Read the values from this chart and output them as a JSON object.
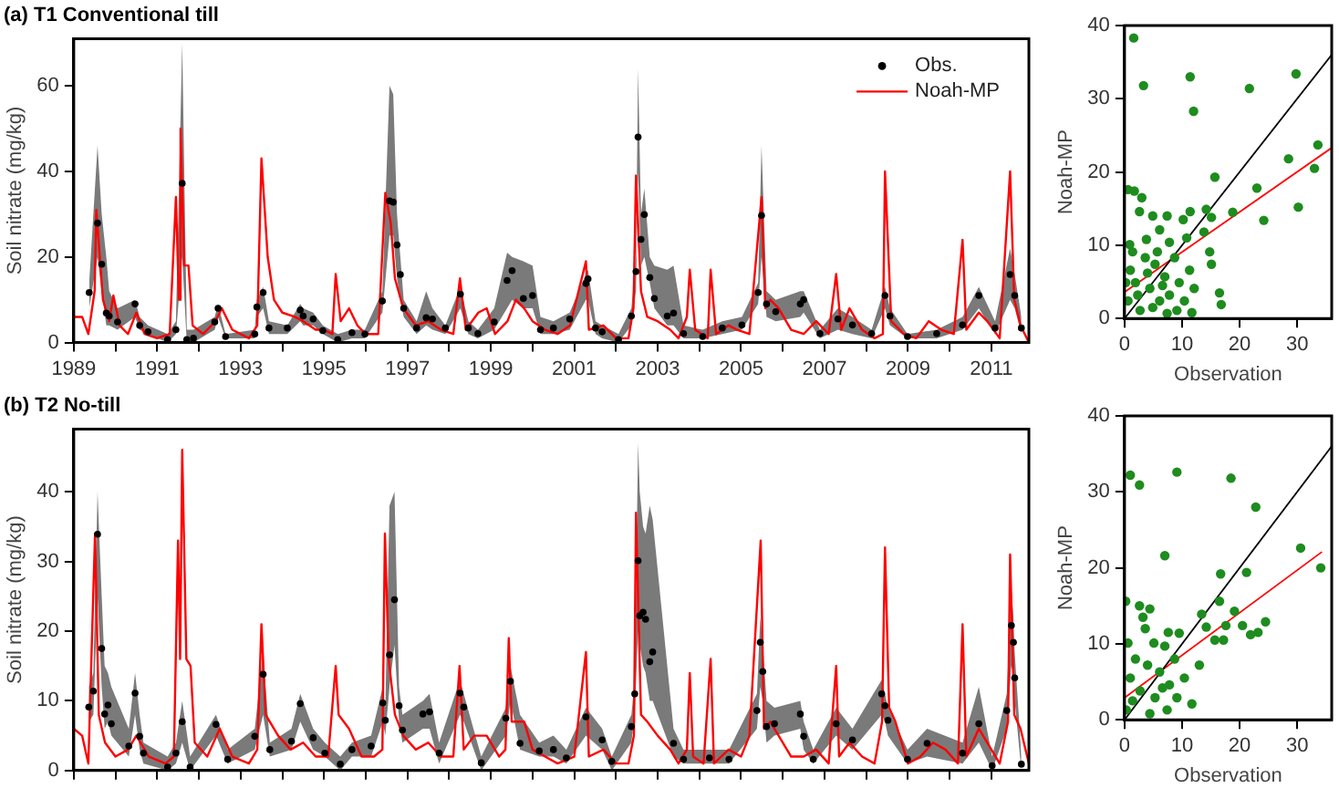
{
  "chart_data": [
    {
      "type": "line",
      "title": "(a) T1 Conventional till",
      "ylabel": "Soil nitrate (mg/kg)",
      "xlim": [
        1989,
        2011.9
      ],
      "ylim": [
        0,
        71
      ],
      "legend": "top right",
      "xticks": [
        1989,
        {
          "value": 1990,
          "label": null
        },
        1991,
        {
          "value": 1992,
          "label": null
        },
        1993,
        {
          "value": 1994,
          "label": null
        },
        1995,
        {
          "value": 1996,
          "label": null
        },
        1997,
        {
          "value": 1998,
          "label": null
        },
        1999,
        {
          "value": 2000,
          "label": null
        },
        2001,
        {
          "value": 2002,
          "label": null
        },
        2003,
        {
          "value": 2004,
          "label": null
        },
        2005,
        {
          "value": 2006,
          "label": null
        },
        2007,
        {
          "value": 2008,
          "label": null
        },
        2009,
        {
          "value": 2010,
          "label": null
        },
        2011
      ],
      "yticks": [
        0,
        20,
        40,
        60
      ],
      "series": [
        {
          "type": "scatter",
          "marker": "circle",
          "name": "Obs.",
          "color": "#000000",
          "x": [
            1989.37,
            1989.57,
            1989.67,
            1989.78,
            1989.85,
            1990.05,
            1990.47,
            1990.58,
            1990.78,
            1991.25,
            1991.45,
            1991.6,
            1991.71,
            1991.87,
            1992.38,
            1992.46,
            1992.64,
            1993.34,
            1993.39,
            1993.54,
            1993.68,
            1994.12,
            1994.43,
            1994.5,
            1994.74,
            1994.97,
            1995.33,
            1995.67,
            1995.98,
            1996.4,
            1996.57,
            1996.66,
            1996.75,
            1996.83,
            1996.91,
            1997.22,
            1997.45,
            1997.6,
            1997.91,
            1998.27,
            1998.46,
            1998.69,
            1999.08,
            1999.39,
            1999.51,
            1999.78,
            2000,
            2000.19,
            2000.5,
            2000.89,
            2001.28,
            2001.33,
            2001.51,
            2001.67,
            2002.06,
            2002.37,
            2002.48,
            2002.53,
            2002.6,
            2002.68,
            2002.81,
            2002.92,
            2003.23,
            2003.38,
            2003.62,
            2004.08,
            2004.55,
            2005.02,
            2005.41,
            2005.49,
            2005.61,
            2005.83,
            2006.42,
            2006.5,
            2006.89,
            2007.32,
            2007.67,
            2008.13,
            2008.45,
            2008.57,
            2008.99,
            2009.69,
            2010.31,
            2010.7,
            2011.09,
            2011.45,
            2011.56,
            2011.72
          ],
          "values": [
            11.7,
            27.9,
            18.3,
            6.9,
            6.2,
            4.8,
            9,
            4,
            2.5,
            0.7,
            3,
            37.2,
            0.7,
            1,
            4.8,
            8,
            1.4,
            2,
            8.3,
            11.7,
            3.4,
            3.4,
            7.6,
            6.2,
            5.5,
            2.8,
            0.7,
            2.3,
            2,
            9.7,
            33.1,
            32.8,
            22.8,
            15.9,
            8,
            3.4,
            5.8,
            5.5,
            3.4,
            11.3,
            3.4,
            2.1,
            4.8,
            14.5,
            16.8,
            10.3,
            11,
            3,
            3.4,
            5.5,
            13.8,
            14.9,
            3.4,
            2.5,
            0.7,
            6.2,
            16.6,
            48,
            24.1,
            29.9,
            15.2,
            10.3,
            6.2,
            6.9,
            2.1,
            1.4,
            3.4,
            4.1,
            11.7,
            29.7,
            9,
            7.2,
            9,
            10,
            2.1,
            5.5,
            4.1,
            2.1,
            11,
            6.2,
            1.4,
            2.1,
            4.1,
            11,
            3.4,
            15.9,
            11,
            3.4
          ],
          "lower": [
            8,
            20,
            12,
            4,
            4,
            3,
            6,
            3,
            2,
            0,
            2,
            20,
            0,
            0,
            3,
            6,
            1,
            1,
            6,
            8,
            2,
            2,
            5,
            4,
            4,
            2,
            0,
            1,
            1,
            7,
            25,
            25,
            15,
            10,
            6,
            2,
            4,
            3,
            2,
            8,
            2,
            1,
            3,
            8,
            10,
            8,
            8,
            2,
            2,
            3,
            10,
            10,
            2,
            1,
            0,
            4,
            12,
            40,
            18,
            20,
            14,
            8,
            4,
            4,
            1,
            1,
            2,
            3,
            9,
            20,
            6,
            5,
            6,
            7,
            1,
            3,
            2,
            1,
            8,
            4,
            1,
            1,
            3,
            8,
            2,
            10,
            8,
            2
          ],
          "upper": [
            14,
            46,
            30,
            20,
            12,
            8,
            10,
            6,
            4,
            2,
            5,
            70,
            3,
            3,
            6,
            9,
            2,
            3,
            10,
            13,
            5,
            4,
            9,
            8,
            7,
            4,
            2,
            3,
            3,
            12,
            60,
            58,
            30,
            20,
            10,
            5,
            12,
            8,
            4,
            13,
            5,
            3,
            8,
            21,
            20,
            19,
            18,
            6,
            5,
            7,
            16,
            17,
            5,
            4,
            2,
            8,
            20,
            64,
            30,
            36,
            20,
            18,
            17,
            18,
            4,
            3,
            5,
            6,
            14,
            46,
            12,
            10,
            12,
            12,
            3,
            8,
            6,
            3,
            13,
            8,
            2,
            3,
            6,
            13,
            5,
            22,
            16,
            6
          ]
        },
        {
          "name": "Noah-MP",
          "marker": "none",
          "color": "#ff0000",
          "x": [
            1989,
            1989.2,
            1989.35,
            1989.5,
            1989.54,
            1989.7,
            1989.85,
            1989.95,
            1990.1,
            1990.3,
            1990.5,
            1990.7,
            1991,
            1991.3,
            1991.45,
            1991.52,
            1991.56,
            1991.65,
            1991.75,
            1991.85,
            1992.1,
            1992.4,
            1992.55,
            1992.8,
            1993.2,
            1993.4,
            1993.5,
            1993.65,
            1993.8,
            1994,
            1994.3,
            1994.5,
            1994.8,
            1995,
            1995.2,
            1995.28,
            1995.4,
            1995.6,
            1995.8,
            1996,
            1996.3,
            1996.47,
            1996.6,
            1996.7,
            1996.9,
            1997.2,
            1997.5,
            1997.8,
            1998.1,
            1998.26,
            1998.4,
            1998.7,
            1998.9,
            1999.1,
            1999.4,
            1999.6,
            1999.8,
            2000,
            2000.3,
            2000.6,
            2000.9,
            2001.28,
            2001.35,
            2001.7,
            2002,
            2002.3,
            2002.42,
            2002.48,
            2002.6,
            2002.75,
            2003,
            2003.3,
            2003.5,
            2003.7,
            2003.77,
            2003.9,
            2004.2,
            2004.27,
            2004.4,
            2004.7,
            2004.9,
            2005.2,
            2005.49,
            2005.58,
            2005.7,
            2005.9,
            2006.2,
            2006.5,
            2006.8,
            2007.1,
            2007.28,
            2007.4,
            2007.6,
            2007.9,
            2008.2,
            2008.4,
            2008.45,
            2008.6,
            2008.9,
            2009.2,
            2009.5,
            2009.8,
            2010.1,
            2010.31,
            2010.4,
            2010.7,
            2010.9,
            2011.2,
            2011.45,
            2011.55,
            2011.7,
            2011.9
          ],
          "values": [
            6,
            6,
            2,
            12,
            31,
            10,
            5,
            11,
            4,
            2,
            7,
            2,
            1,
            2,
            34,
            10,
            50,
            18,
            18,
            4,
            2,
            5,
            8,
            3,
            1,
            4,
            43,
            20,
            10,
            7,
            6,
            5,
            3,
            3,
            2,
            16,
            5,
            8,
            4,
            2,
            2,
            35,
            28,
            15,
            8,
            4,
            5,
            3,
            2,
            15,
            3,
            7,
            8,
            2,
            5,
            10,
            8,
            5,
            3,
            2,
            4,
            19,
            3,
            4,
            1,
            1,
            8,
            39,
            12,
            6,
            5,
            3,
            1,
            6,
            17,
            3,
            1,
            17,
            2,
            4,
            3,
            2,
            34,
            8,
            10,
            8,
            3,
            2,
            5,
            2,
            16,
            3,
            8,
            3,
            1,
            2,
            40,
            5,
            2,
            1,
            5,
            3,
            2,
            24,
            3,
            7,
            5,
            1,
            40,
            10,
            4,
            0
          ]
        }
      ]
    },
    {
      "type": "scatter",
      "xlabel": "Observation",
      "ylabel": "Noah-MP",
      "xlim": [
        0,
        36
      ],
      "ylim": [
        0,
        40
      ],
      "xticks": [
        0,
        10,
        20,
        30
      ],
      "yticks": [
        0,
        10,
        20,
        30,
        40
      ],
      "series": [
        {
          "marker": "circle",
          "color": "#1e8c1e",
          "x": [
            1.6,
            3.3,
            11.4,
            12,
            29.8,
            21.7,
            33.6,
            33,
            28.5,
            23,
            15.7,
            30.2,
            24.2,
            18.8,
            14.2,
            0.6,
            1.7,
            3,
            2.6,
            4.9,
            7.4,
            10.2,
            11.4,
            15.1,
            13.8,
            6.1,
            3.8,
            0.9,
            7.8,
            10.8,
            14.8,
            15.1,
            16.5,
            16.8,
            11.7,
            1,
            1.9,
            3.6,
            4.4,
            5.3,
            6.1,
            7,
            7.8,
            8.7,
            9.5,
            10.4,
            11.3,
            0.6,
            2.7,
            4.9,
            7.4,
            1.4,
            0.2,
            2.3,
            4,
            5.7,
            9.1,
            12.1,
            6.6
          ],
          "values": [
            38.3,
            31.8,
            33,
            28.3,
            33.4,
            31.4,
            23.7,
            20.5,
            21.8,
            17.8,
            19.3,
            15.2,
            13.4,
            14.5,
            14.9,
            17.6,
            17.4,
            16.5,
            14.6,
            14,
            14,
            13.5,
            14.6,
            13.8,
            11.8,
            12.1,
            10.8,
            10.1,
            10.4,
            11,
            9.1,
            7.4,
            3.5,
            1.9,
            0.8,
            6.6,
            4.9,
            8.3,
            4.1,
            7.4,
            2.4,
            5.7,
            3.2,
            8.3,
            4.9,
            2.4,
            6.6,
            2.4,
            1.1,
            1.5,
            0.7,
            9.1,
            4.9,
            3.2,
            6.2,
            9.1,
            1.1,
            4.1,
            4.5
          ]
        },
        {
          "type": "line",
          "marker": "none",
          "color": "#000000",
          "x": [
            0,
            36
          ],
          "values": [
            0,
            36
          ]
        },
        {
          "type": "line",
          "marker": "none",
          "color": "#ff0000",
          "x": [
            0,
            36
          ],
          "values": [
            3.6,
            23.3
          ]
        }
      ]
    },
    {
      "type": "line",
      "title": "(b) T2 No-till",
      "ylabel": "Soil nitrate (mg/kg)",
      "xlim": [
        1989,
        2011.9
      ],
      "ylim": [
        0,
        49
      ],
      "tick_labels": "y",
      "xticks": [
        {
          "value": 1989,
          "label": null
        },
        {
          "value": 1990,
          "label": null
        },
        {
          "value": 1991,
          "label": null
        },
        {
          "value": 1992,
          "label": null
        },
        {
          "value": 1993,
          "label": null
        },
        {
          "value": 1994,
          "label": null
        },
        {
          "value": 1995,
          "label": null
        },
        {
          "value": 1996,
          "label": null
        },
        {
          "value": 1997,
          "label": null
        },
        {
          "value": 1998,
          "label": null
        },
        {
          "value": 1999,
          "label": null
        },
        {
          "value": 2000,
          "label": null
        },
        {
          "value": 2001,
          "label": null
        },
        {
          "value": 2002,
          "label": null
        },
        {
          "value": 2003,
          "label": null
        },
        {
          "value": 2004,
          "label": null
        },
        {
          "value": 2005,
          "label": null
        },
        {
          "value": 2006,
          "label": null
        },
        {
          "value": 2007,
          "label": null
        },
        {
          "value": 2008,
          "label": null
        },
        {
          "value": 2009,
          "label": null
        },
        {
          "value": 2010,
          "label": null
        },
        {
          "value": 2011,
          "label": null
        }
      ],
      "yticks": [
        0,
        10,
        20,
        30,
        40
      ],
      "series": [
        {
          "type": "scatter",
          "marker": "circle",
          "color": "#000000",
          "x": [
            1989.36,
            1989.47,
            1989.57,
            1989.67,
            1989.74,
            1989.82,
            1989.9,
            1990.32,
            1990.47,
            1990.58,
            1990.67,
            1991.25,
            1991.45,
            1991.6,
            1991.79,
            1992.41,
            1992.69,
            1993.34,
            1993.54,
            1993.7,
            1994.22,
            1994.43,
            1994.74,
            1995.02,
            1995.39,
            1995.67,
            1996.13,
            1996.41,
            1996.47,
            1996.57,
            1996.69,
            1996.8,
            1996.88,
            1997.37,
            1997.53,
            1997.76,
            1998.26,
            1998.35,
            1998.77,
            1999.36,
            1999.47,
            1999.7,
            2000.16,
            2000.5,
            2000.81,
            2001.28,
            2001.67,
            2001.9,
            2002.37,
            2002.45,
            2002.53,
            2002.57,
            2002.65,
            2002.71,
            2002.81,
            2002.88,
            2003.38,
            2003.62,
            2004.24,
            2004.71,
            2005.38,
            2005.46,
            2005.52,
            2005.61,
            2005.8,
            2006.42,
            2006.5,
            2006.73,
            2007.28,
            2007.67,
            2008.37,
            2008.45,
            2008.52,
            2008.99,
            2009.46,
            2010.31,
            2010.7,
            2011.02,
            2011.37,
            2011.48,
            2011.53,
            2011.56,
            2011.72
          ],
          "values": [
            9.1,
            11.4,
            33.9,
            17.5,
            8.1,
            9.4,
            6.7,
            3.5,
            11.1,
            4.9,
            2.5,
            0.5,
            2.5,
            7,
            0.5,
            6.6,
            1.6,
            4.9,
            13.8,
            3,
            4.2,
            9.6,
            4.7,
            2.5,
            0.9,
            3,
            3.5,
            9.7,
            7.2,
            16.6,
            24.5,
            9.3,
            5.8,
            8.1,
            8.4,
            2.5,
            11.1,
            9.1,
            1.1,
            7.5,
            12.8,
            3.9,
            2.8,
            3,
            1.8,
            7.7,
            4.4,
            1.3,
            6.3,
            11,
            30.1,
            22.2,
            22.7,
            21.7,
            15.6,
            17,
            3.9,
            1.6,
            1.8,
            1.6,
            8.6,
            18.4,
            14.2,
            6.3,
            6.7,
            8.1,
            4.9,
            1.6,
            6.7,
            4.4,
            11,
            9.3,
            7.2,
            1.6,
            3.9,
            2.5,
            6.7,
            0.7,
            8.6,
            20.8,
            18.4,
            13.3,
            0.9
          ],
          "lower": [
            7,
            8,
            25,
            12,
            6,
            7,
            5,
            2,
            8,
            3,
            1,
            0,
            1,
            4,
            0,
            5,
            1,
            3,
            8,
            2,
            3,
            7,
            3,
            2,
            0,
            2,
            2,
            7,
            5,
            12,
            18,
            7,
            4,
            6,
            6,
            1,
            8,
            7,
            0,
            5,
            10,
            3,
            2,
            2,
            1,
            5,
            3,
            0,
            4,
            8,
            20,
            18,
            15,
            14,
            10,
            10,
            2,
            1,
            1,
            1,
            6,
            12,
            10,
            4,
            5,
            6,
            3,
            1,
            5,
            3,
            8,
            7,
            5,
            1,
            2,
            1,
            4,
            0,
            6,
            15,
            14,
            10,
            0
          ],
          "upper": [
            12,
            14,
            40,
            25,
            15,
            14,
            12,
            6,
            14,
            8,
            4,
            2,
            4,
            10,
            2,
            8,
            3,
            6,
            17,
            4,
            6,
            11,
            6,
            4,
            2,
            4,
            5,
            12,
            9,
            38,
            40,
            12,
            8,
            10,
            11,
            4,
            13,
            11,
            2,
            9,
            15,
            8,
            4,
            5,
            3,
            9,
            6,
            2,
            8,
            13,
            47,
            40,
            35,
            34,
            38,
            36,
            6,
            3,
            3,
            3,
            11,
            22,
            18,
            10,
            9,
            10,
            7,
            3,
            9,
            6,
            13,
            11,
            9,
            3,
            6,
            4,
            12,
            2,
            11,
            26,
            22,
            17,
            2
          ]
        },
        {
          "marker": "none",
          "color": "#ff0000",
          "x": [
            1989,
            1989.2,
            1989.35,
            1989.51,
            1989.6,
            1989.75,
            1990,
            1990.3,
            1990.5,
            1990.8,
            1991.2,
            1991.4,
            1991.5,
            1991.55,
            1991.6,
            1991.7,
            1991.8,
            1991.9,
            1992.2,
            1992.5,
            1992.8,
            1993.2,
            1993.4,
            1993.5,
            1993.6,
            1993.9,
            1994.2,
            1994.5,
            1994.8,
            1995.1,
            1995.28,
            1995.35,
            1995.6,
            1995.9,
            1996.2,
            1996.4,
            1996.46,
            1996.55,
            1996.7,
            1996.9,
            1997.2,
            1997.5,
            1997.8,
            1998.1,
            1998.25,
            1998.35,
            1998.6,
            1998.9,
            1999.2,
            1999.35,
            1999.43,
            1999.5,
            1999.8,
            2000,
            2000.3,
            2000.6,
            2001,
            2001.28,
            2001.35,
            2001.7,
            2002,
            2002.3,
            2002.43,
            2002.48,
            2002.6,
            2002.75,
            2003,
            2003.3,
            2003.5,
            2003.7,
            2003.77,
            2003.85,
            2004.1,
            2004.27,
            2004.35,
            2004.7,
            2005,
            2005.2,
            2005.47,
            2005.55,
            2005.7,
            2005.9,
            2006.2,
            2006.5,
            2006.8,
            2007.1,
            2007.28,
            2007.35,
            2007.6,
            2007.9,
            2008.2,
            2008.38,
            2008.45,
            2008.55,
            2008.7,
            2009,
            2009.3,
            2009.6,
            2009.9,
            2010.2,
            2010.31,
            2010.4,
            2010.7,
            2010.9,
            2011.2,
            2011.4,
            2011.45,
            2011.55,
            2011.7,
            2011.9
          ],
          "values": [
            6,
            5,
            1,
            34,
            8,
            4,
            2,
            3,
            5,
            2,
            1,
            2,
            33,
            16,
            46,
            16,
            15,
            4,
            2,
            6,
            2,
            1,
            3,
            21,
            8,
            5,
            3,
            4,
            2,
            2,
            15,
            8,
            6,
            2,
            2,
            3,
            34,
            16,
            8,
            5,
            3,
            4,
            2,
            2,
            15,
            3,
            5,
            5,
            2,
            3,
            19,
            7,
            7,
            3,
            2,
            1,
            2,
            17,
            2,
            3,
            1,
            1,
            5,
            37,
            8,
            7,
            5,
            3,
            1,
            3,
            14,
            2,
            1,
            16,
            1,
            3,
            2,
            5,
            33,
            6,
            7,
            5,
            2,
            2,
            3,
            1,
            15,
            2,
            4,
            2,
            1,
            7,
            32,
            9,
            7,
            1,
            2,
            4,
            3,
            1,
            21,
            2,
            6,
            4,
            1,
            7,
            31,
            8,
            6,
            1
          ]
        }
      ]
    },
    {
      "type": "scatter",
      "xlabel": "Observation",
      "ylabel": "Noah-MP",
      "xlim": [
        0,
        36
      ],
      "ylim": [
        0,
        40
      ],
      "xticks": [
        0,
        10,
        20,
        30
      ],
      "yticks": [
        0,
        10,
        20,
        30,
        40
      ],
      "series": [
        {
          "marker": "circle",
          "color": "#1e8c1e",
          "x": [
            1,
            2.6,
            9.1,
            18.5,
            22.8,
            7,
            30.6,
            34.1,
            21.2,
            16.7,
            16.5,
            19.1,
            13.4,
            14.2,
            15.7,
            17.6,
            17.2,
            20.5,
            21.9,
            23.2,
            24.5,
            13,
            0.2,
            2.6,
            4.4,
            3.2,
            3.6,
            5.1,
            7.6,
            9.5,
            0.6,
            7,
            1.9,
            4,
            6.1,
            8.7,
            10.4,
            11.7,
            9.1,
            1,
            2.7,
            5.3,
            7.4,
            0.3,
            4.4,
            7.8,
            1.4,
            6.6
          ],
          "values": [
            32.2,
            30.9,
            32.6,
            31.8,
            28,
            21.6,
            22.6,
            20,
            19.4,
            19.2,
            15.6,
            14.3,
            13.9,
            12.2,
            10.5,
            12.4,
            10.5,
            12.4,
            11.2,
            11.5,
            12.9,
            7.2,
            15.6,
            15,
            14.6,
            13.5,
            12,
            10.1,
            11.5,
            11.4,
            10.1,
            9.7,
            8,
            7.2,
            6.3,
            8,
            5.5,
            2.1,
            2.9,
            5.5,
            3.8,
            2.9,
            1.3,
            1.3,
            0.8,
            4.6,
            2.5,
            4.2
          ]
        },
        {
          "type": "line",
          "marker": "none",
          "color": "#000000",
          "x": [
            0,
            36
          ],
          "values": [
            0,
            36
          ]
        },
        {
          "type": "line",
          "marker": "none",
          "color": "#ff0000",
          "x": [
            0,
            34.3
          ],
          "values": [
            2.9,
            22.1
          ]
        }
      ]
    }
  ]
}
